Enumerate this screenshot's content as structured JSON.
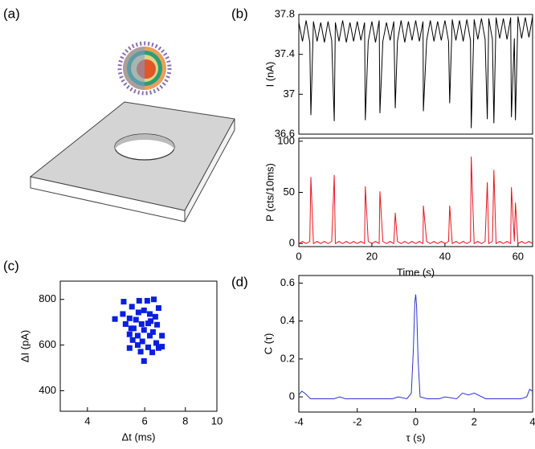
{
  "chart_data": [
    {
      "type": "illustration",
      "panel_label": "(a)"
    },
    {
      "type": "line",
      "panel_label": "(b)",
      "ylabel": "I (nA)",
      "xlim": [
        0,
        64
      ],
      "ylim": [
        36.6,
        37.8
      ],
      "yticks": [
        37.8,
        37.4,
        37,
        36.6
      ],
      "x": [
        0,
        1,
        2,
        3,
        3.3,
        4,
        5,
        6,
        7,
        8,
        9,
        9.7,
        10,
        11,
        12,
        13,
        14,
        15,
        16,
        17,
        18,
        18.2,
        19,
        20,
        21,
        22,
        22.2,
        23,
        24,
        25,
        26,
        26.4,
        27,
        28,
        29,
        30,
        31,
        32,
        33,
        34,
        34.1,
        35,
        36,
        37,
        38,
        39,
        40,
        41,
        41.3,
        42,
        43,
        44,
        45,
        46,
        47,
        47.2,
        48,
        49,
        50,
        51,
        51.6,
        52,
        53,
        53.4,
        54,
        55,
        56,
        57,
        58,
        58.2,
        59,
        59.3,
        60,
        61,
        62,
        63,
        64
      ],
      "series": [
        {
          "color": "#000000",
          "values": [
            37.72,
            37.53,
            37.74,
            37.52,
            36.79,
            37.73,
            37.53,
            37.72,
            37.52,
            37.73,
            37.54,
            36.73,
            37.72,
            37.53,
            37.74,
            37.52,
            37.72,
            37.53,
            37.73,
            37.54,
            37.72,
            36.74,
            37.53,
            37.73,
            37.52,
            37.74,
            36.81,
            37.53,
            37.72,
            37.54,
            37.73,
            36.86,
            37.53,
            37.74,
            37.52,
            37.73,
            37.54,
            37.74,
            37.53,
            37.73,
            36.83,
            37.54,
            37.74,
            37.53,
            37.73,
            37.54,
            37.74,
            37.53,
            36.91,
            37.75,
            37.54,
            37.74,
            37.53,
            37.75,
            37.54,
            36.66,
            37.75,
            37.55,
            37.76,
            37.55,
            36.75,
            37.76,
            37.55,
            36.71,
            37.77,
            37.56,
            37.76,
            37.55,
            37.77,
            36.77,
            37.56,
            36.74,
            37.78,
            37.56,
            37.77,
            37.57,
            37.78
          ]
        }
      ]
    },
    {
      "type": "line",
      "ylabel": "P (cts/10ms)",
      "xlabel": "Time (s)",
      "xlim": [
        0,
        64
      ],
      "ylim": [
        -3,
        103
      ],
      "xticks": [
        0,
        20,
        40,
        60
      ],
      "yticks": [
        0,
        50,
        100
      ],
      "x": [
        0,
        1,
        2,
        3,
        3.3,
        4,
        5,
        6,
        7,
        8,
        9,
        9.7,
        10,
        11,
        12,
        13,
        14,
        15,
        16,
        17,
        18,
        18.2,
        19,
        20,
        21,
        22,
        22.2,
        23,
        24,
        25,
        26,
        26.4,
        27,
        28,
        29,
        30,
        31,
        32,
        33,
        34,
        34.1,
        35,
        36,
        37,
        38,
        39,
        40,
        41,
        41.3,
        42,
        43,
        44,
        45,
        46,
        47,
        47.2,
        48,
        49,
        50,
        51,
        51.6,
        52,
        53,
        53.4,
        54,
        55,
        56,
        57,
        58,
        58.2,
        59,
        59.3,
        60,
        61,
        62,
        63,
        64
      ],
      "series": [
        {
          "color": "#e8141c",
          "values": [
            0,
            2,
            0,
            2,
            65,
            0,
            2,
            0,
            2,
            0,
            2,
            67,
            0,
            2,
            0,
            2,
            0,
            2,
            0,
            2,
            0,
            56,
            2,
            0,
            2,
            0,
            51,
            2,
            0,
            2,
            0,
            30,
            2,
            0,
            2,
            0,
            2,
            0,
            2,
            0,
            37,
            2,
            0,
            2,
            0,
            2,
            0,
            2,
            37,
            0,
            2,
            0,
            2,
            0,
            2,
            85,
            0,
            2,
            0,
            2,
            60,
            0,
            2,
            72,
            0,
            2,
            0,
            2,
            0,
            55,
            2,
            40,
            0,
            2,
            0,
            2,
            0
          ]
        }
      ]
    },
    {
      "type": "scatter",
      "panel_label": "(c)",
      "xlabel": "Δt (ms)",
      "ylabel": "ΔI (pA)",
      "xscale": "log",
      "xlim": [
        3.3,
        10
      ],
      "ylim": [
        310,
        880
      ],
      "xticks": [
        4,
        6,
        8,
        10
      ],
      "yticks": [
        400,
        600,
        800
      ],
      "color": "#0a1ee0",
      "x": [
        5.17,
        5.48,
        5.14,
        5.77,
        6.11,
        6.4,
        5.97,
        5.74,
        5.39,
        4.86,
        5.64,
        6.22,
        6.47,
        5.24,
        5.87,
        6.15,
        6.55,
        5.55,
        5.97,
        6.36,
        5.39,
        5.71,
        6.22,
        6.78,
        5.51,
        5.9,
        6.51,
        5.71,
        6.15,
        5.39,
        6.62,
        5.83,
        6.33,
        5.97,
        6.78,
        6.26,
        6.62,
        5.45
      ],
      "values": [
        790,
        768,
        736,
        794,
        794,
        800,
        752,
        743,
        717,
        714,
        711,
        736,
        724,
        692,
        692,
        695,
        689,
        673,
        666,
        657,
        647,
        641,
        641,
        641,
        622,
        616,
        609,
        600,
        590,
        587,
        587,
        571,
        568,
        530,
        593,
        705,
        762,
        673
      ]
    },
    {
      "type": "line",
      "panel_label": "(d)",
      "xlabel": "τ (s)",
      "ylabel": "C (τ)",
      "xlim": [
        -4,
        4
      ],
      "ylim": [
        -0.08,
        0.64
      ],
      "xticks": [
        -4,
        -2,
        0,
        2,
        4
      ],
      "yticks": [
        0,
        0.2,
        0.4,
        0.6
      ],
      "x": [
        -4,
        -3.9,
        -3.8,
        -3.6,
        -3.2,
        -2.8,
        -2.6,
        -2.4,
        -2.0,
        -1.6,
        -1.2,
        -0.8,
        -0.6,
        -0.3,
        -0.15,
        -0.08,
        -0.03,
        0,
        0.03,
        0.08,
        0.15,
        0.4,
        0.8,
        1.0,
        1.4,
        1.6,
        1.8,
        2.0,
        2.4,
        2.8,
        3.2,
        3.6,
        3.8,
        3.9,
        4
      ],
      "series": [
        {
          "color": "#2b35c8",
          "values": [
            0.01,
            0.03,
            0.02,
            -0.01,
            -0.01,
            -0.01,
            0.0,
            -0.01,
            -0.01,
            -0.01,
            -0.01,
            -0.01,
            0.0,
            -0.01,
            0.02,
            0.25,
            0.5,
            0.54,
            0.48,
            0.2,
            0.0,
            -0.01,
            -0.01,
            0.0,
            -0.01,
            0.02,
            0.01,
            0.02,
            -0.01,
            -0.01,
            -0.01,
            -0.01,
            0.0,
            0.04,
            0.03
          ]
        }
      ]
    }
  ]
}
